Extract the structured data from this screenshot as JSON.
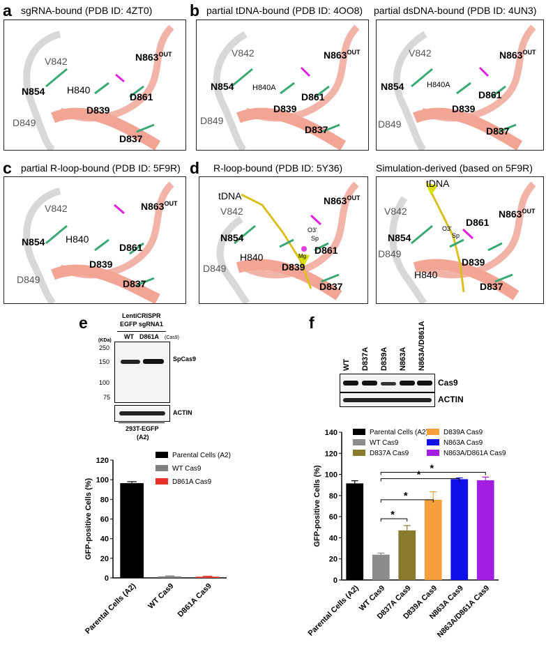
{
  "panels": {
    "a": {
      "label": "a",
      "title": "sgRNA-bound (PDB ID: 4ZT0)",
      "residues": {
        "v842": "V842",
        "n863": "N863",
        "n863_sup": "OUT",
        "n854": "N854",
        "h840": "H840",
        "d861": "D861",
        "d839": "D839",
        "d849": "D849",
        "d837": "D837"
      }
    },
    "b": {
      "label": "b",
      "title": "partial tDNA-bound (PDB ID: 4OO8)",
      "residues": {
        "v842": "V842",
        "n863": "N863",
        "n863_sup": "OUT",
        "n854": "N854",
        "h840": "H840A",
        "d861": "D861",
        "d839": "D839",
        "d849": "D849",
        "d837": "D837"
      }
    },
    "b2": {
      "title": "partial dsDNA-bound (PDB ID: 4UN3)",
      "residues": {
        "v842": "V842",
        "n863": "N863",
        "n863_sup": "OUT",
        "n854": "N854",
        "h840": "H840A",
        "d861": "D861",
        "d839": "D839",
        "d849": "D849",
        "d837": "D837"
      }
    },
    "c": {
      "label": "c",
      "title": "partial R-loop-bound (PDB ID: 5F9R)",
      "residues": {
        "v842": "V842",
        "n863": "N863",
        "n863_sup": "OUT",
        "n854": "N854",
        "h840": "H840",
        "d861": "D861",
        "d839": "D839",
        "d849": "D849",
        "d837": "D837"
      }
    },
    "d": {
      "label": "d",
      "title": "R-loop-bound (PDB ID: 5Y36)",
      "residues": {
        "tdna": "tDNA",
        "v842": "V842",
        "n863": "N863",
        "n863_sup": "OUT",
        "n854": "N854",
        "h840": "H840",
        "d861": "D861",
        "d839": "D839",
        "d849": "D849",
        "d837": "D837",
        "o3": "O3'",
        "sp": "Sp",
        "mg": "Mg"
      }
    },
    "d2": {
      "title": "Simulation-derived (based on 5F9R)",
      "residues": {
        "tdna": "tDNA",
        "v842": "V842",
        "n863": "N863",
        "n863_sup": "OUT",
        "n854": "N854",
        "h840": "H840",
        "d861": "D861",
        "d839": "D839",
        "d849": "D849",
        "d837": "D837",
        "o3": "O3'",
        "sp": "Sp"
      }
    }
  },
  "panel_e": {
    "label": "e",
    "header_line1": "LentiCRISPR",
    "header_line2": "EGFP sgRNA1",
    "lanes": [
      "WT",
      "D861A"
    ],
    "lane_note": "(Cas9)",
    "kda_label": "(KDa)",
    "markers": [
      "250",
      "150",
      "100",
      "75"
    ],
    "band_top": "SpCas9",
    "band_bottom": "ACTIN",
    "cell_line": "293T-EGFP",
    "cell_line_sub": "(A2)",
    "colors": {
      "parental": "#000000",
      "wt": "#808080",
      "d861a": "#e8302a"
    }
  },
  "panel_f": {
    "label": "f",
    "lanes": [
      "WT",
      "D837A",
      "D839A",
      "N863A",
      "N863A/D861A"
    ],
    "band_top": "Cas9",
    "band_bottom": "ACTIN",
    "colors": {
      "parental": "#000000",
      "wt": "#8c8c8c",
      "d837a": "#8a7a2e",
      "d839a": "#f5a03a",
      "n863a": "#1010e8",
      "n863a_d861a": "#a21ee0"
    },
    "significance_marker": "*"
  },
  "chart_data": [
    {
      "type": "bar",
      "categories": [
        "Parental Cells (A2)",
        "WT Cas9",
        "D861A Cas9"
      ],
      "values": [
        96.5,
        1.5,
        1.2
      ],
      "errors": [
        1.5,
        0.5,
        0.5
      ],
      "ylabel": "GFP-positive Cells (%)",
      "ylim": [
        0,
        120
      ],
      "yticks": [
        "0",
        "20",
        "40",
        "60",
        "80",
        "100",
        "120"
      ],
      "legend": [
        "Parental Cells (A2)",
        "WT Cas9",
        "D861A Cas9"
      ],
      "legend_position": "top-right"
    },
    {
      "type": "bar",
      "categories": [
        "Parental Cells (A2)",
        "WT Cas9",
        "D837A Cas9",
        "D839A Cas9",
        "N863A Cas9",
        "N863A/D861A Cas9"
      ],
      "values": [
        91.5,
        24,
        47,
        76,
        95.5,
        94.5
      ],
      "errors": [
        2.5,
        1.5,
        4.5,
        7.5,
        1.2,
        3
      ],
      "ylabel": "GFP-positive Cells (%)",
      "ylim": [
        0,
        140
      ],
      "yticks": [
        "0",
        "20",
        "40",
        "60",
        "80",
        "100",
        "120",
        "140"
      ],
      "legend": [
        "Parental Cells (A2)",
        "WT Cas9",
        "D837A Cas9",
        "D839A Cas9",
        "N863A Cas9",
        "N863A/D861A Cas9"
      ],
      "legend_position": "top",
      "significance": [
        [
          "WT Cas9",
          "D837A Cas9"
        ],
        [
          "WT Cas9",
          "D839A Cas9"
        ],
        [
          "WT Cas9",
          "N863A Cas9"
        ],
        [
          "WT Cas9",
          "N863A/D861A Cas9"
        ]
      ]
    }
  ]
}
